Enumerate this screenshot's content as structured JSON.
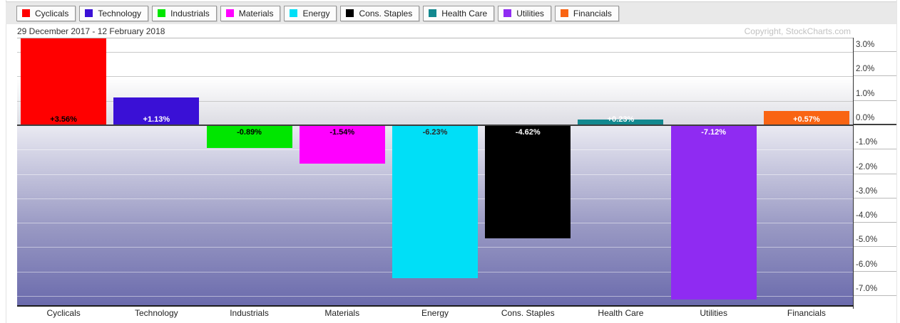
{
  "header": {
    "date_range": "29 December 2017 - 12 February 2018",
    "copyright": "Copyright, StockCharts.com"
  },
  "legend": {
    "items": [
      {
        "label": "Cyclicals",
        "color": "#ff0000"
      },
      {
        "label": "Technology",
        "color": "#3a10d6"
      },
      {
        "label": "Industrials",
        "color": "#00e600"
      },
      {
        "label": "Materials",
        "color": "#ff00ff"
      },
      {
        "label": "Energy",
        "color": "#00dff7"
      },
      {
        "label": "Cons. Staples",
        "color": "#000000"
      },
      {
        "label": "Health Care",
        "color": "#12888f"
      },
      {
        "label": "Utilities",
        "color": "#8f2bf2"
      },
      {
        "label": "Financials",
        "color": "#f96413"
      }
    ]
  },
  "chart_data": {
    "type": "bar",
    "title": "",
    "xlabel": "",
    "ylabel": "",
    "categories": [
      "Cyclicals",
      "Technology",
      "Industrials",
      "Materials",
      "Energy",
      "Cons. Staples",
      "Health Care",
      "Utilities",
      "Financials"
    ],
    "values": [
      3.56,
      1.13,
      -0.89,
      -1.54,
      -6.23,
      -4.62,
      0.23,
      -7.12,
      0.57
    ],
    "value_labels": [
      "+3.56%",
      "+1.13%",
      "-0.89%",
      "-1.54%",
      "-6.23%",
      "-4.62%",
      "+0.23%",
      "-7.12%",
      "+0.57%"
    ],
    "bar_colors": [
      "#ff0000",
      "#3a10d6",
      "#00e600",
      "#ff00ff",
      "#00dff7",
      "#000000",
      "#12888f",
      "#8f2bf2",
      "#f96413"
    ],
    "value_label_colors": [
      "#000000",
      "#ffffff",
      "#000000",
      "#000000",
      "#2a2a2a",
      "#ffffff",
      "#ffffff",
      "#ffffff",
      "#ffffff"
    ],
    "ylim": [
      -7.44,
      3.56
    ],
    "grid": true,
    "legend_position": "top",
    "y_ticks": [
      {
        "value": 3,
        "label": "3.0%"
      },
      {
        "value": 2,
        "label": "2.0%"
      },
      {
        "value": 1,
        "label": "1.0%"
      },
      {
        "value": 0,
        "label": "0.0%"
      },
      {
        "value": -1,
        "label": "-1.0%"
      },
      {
        "value": -2,
        "label": "-2.0%"
      },
      {
        "value": -3,
        "label": "-3.0%"
      },
      {
        "value": -4,
        "label": "-4.0%"
      },
      {
        "value": -5,
        "label": "-5.0%"
      },
      {
        "value": -6,
        "label": "-6.0%"
      },
      {
        "value": -7,
        "label": "-7.0%"
      }
    ]
  }
}
